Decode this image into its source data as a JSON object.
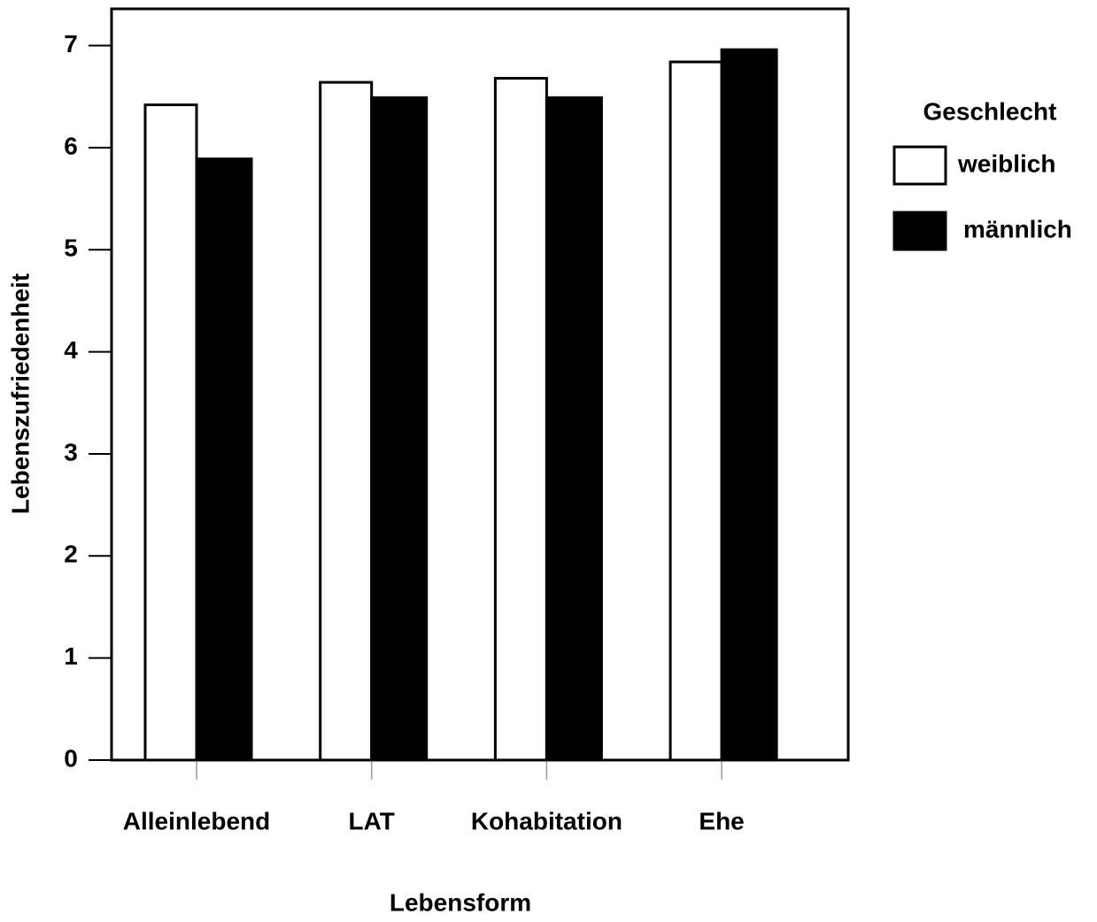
{
  "chart_data": {
    "type": "bar",
    "x_label": "Lebensform",
    "y_label": "Lebenszufriedenheit",
    "categories": [
      "Alleinlebend",
      "LAT",
      "Kohabitation",
      "Ehe"
    ],
    "series": [
      {
        "name": "weiblich",
        "color": "#ffffff",
        "values": [
          6.42,
          6.64,
          6.68,
          6.84
        ]
      },
      {
        "name": "männlich",
        "color": "#000000",
        "values": [
          5.89,
          6.49,
          6.49,
          6.96
        ]
      }
    ],
    "ylim": [
      0,
      7.36
    ],
    "yticks": [
      0,
      1,
      2,
      3,
      4,
      5,
      6,
      7
    ],
    "legend": {
      "title": "Geschlecht",
      "position": "right"
    }
  }
}
